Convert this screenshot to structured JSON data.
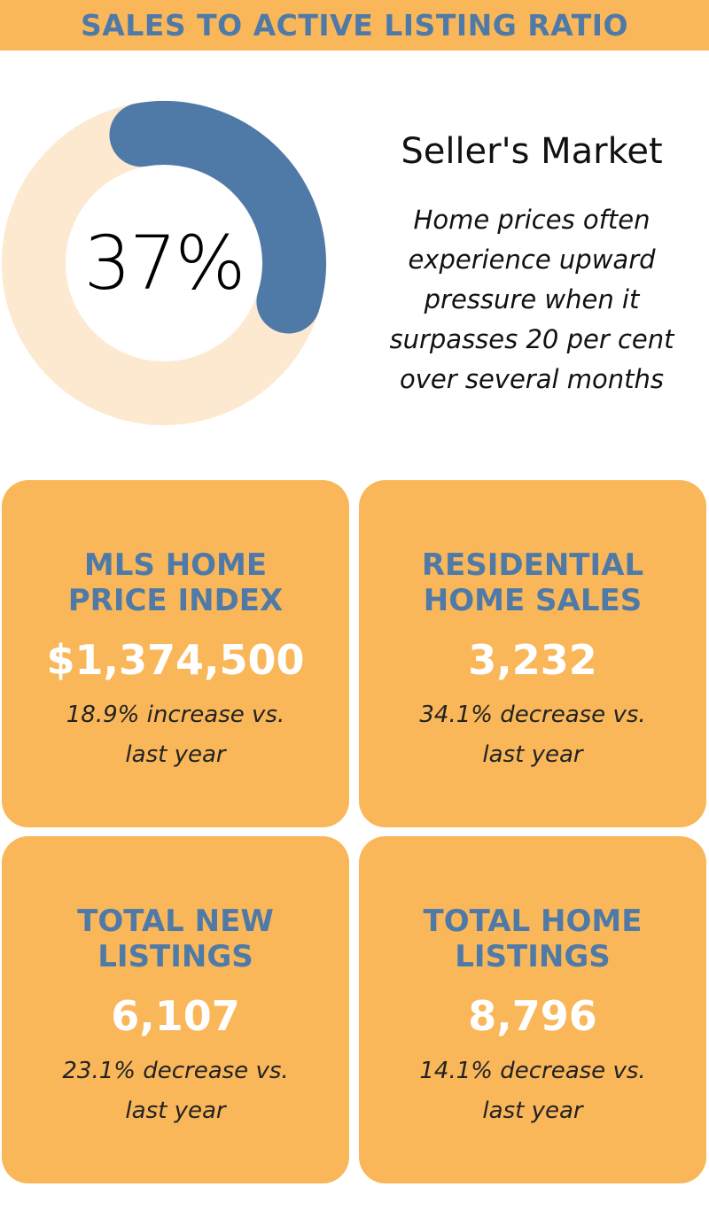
{
  "banner": {
    "title": "SALES TO ACTIVE LISTING RATIO"
  },
  "ratio": {
    "value_text": "37%",
    "fraction": 0.37,
    "ring_color": "#fde8d0",
    "arc_color": "#4f7aa8"
  },
  "market": {
    "title": "Seller's Market",
    "description": "Home prices often experience upward pressure when it surpasses 20 per cent over several months"
  },
  "cards": [
    {
      "title_line1": "MLS HOME",
      "title_line2": "PRICE INDEX",
      "value": "$1,374,500",
      "change_line1": "18.9% increase vs.",
      "change_line2": "last year"
    },
    {
      "title_line1": "RESIDENTIAL",
      "title_line2": "HOME SALES",
      "value": "3,232",
      "change_line1": "34.1% decrease vs.",
      "change_line2": "last year"
    },
    {
      "title_line1": "TOTAL NEW",
      "title_line2": "LISTINGS",
      "value": "6,107",
      "change_line1": "23.1% decrease vs.",
      "change_line2": "last year"
    },
    {
      "title_line1": "TOTAL HOME",
      "title_line2": "LISTINGS",
      "value": "8,796",
      "change_line1": "14.1% decrease vs.",
      "change_line2": "last year"
    }
  ],
  "colors": {
    "accent_orange": "#f9b75a",
    "accent_blue": "#4f7aa8"
  }
}
